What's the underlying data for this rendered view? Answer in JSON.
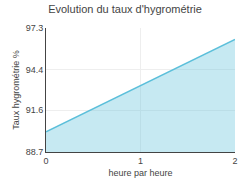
{
  "chart_data": {
    "type": "area",
    "title": "Evolution du taux d'hygrométrie",
    "xlabel": "heure par heure",
    "ylabel": "Taux hygrométrie %",
    "x": [
      0,
      2
    ],
    "values": [
      90.1,
      96.5
    ],
    "color": "#5bbfda",
    "xlim": [
      0,
      2
    ],
    "xticks": [
      0,
      1,
      2
    ],
    "ylim": [
      88.7,
      97.3
    ],
    "yticks": [
      88.7,
      91.6,
      94.4,
      97.3
    ],
    "grid": true
  }
}
